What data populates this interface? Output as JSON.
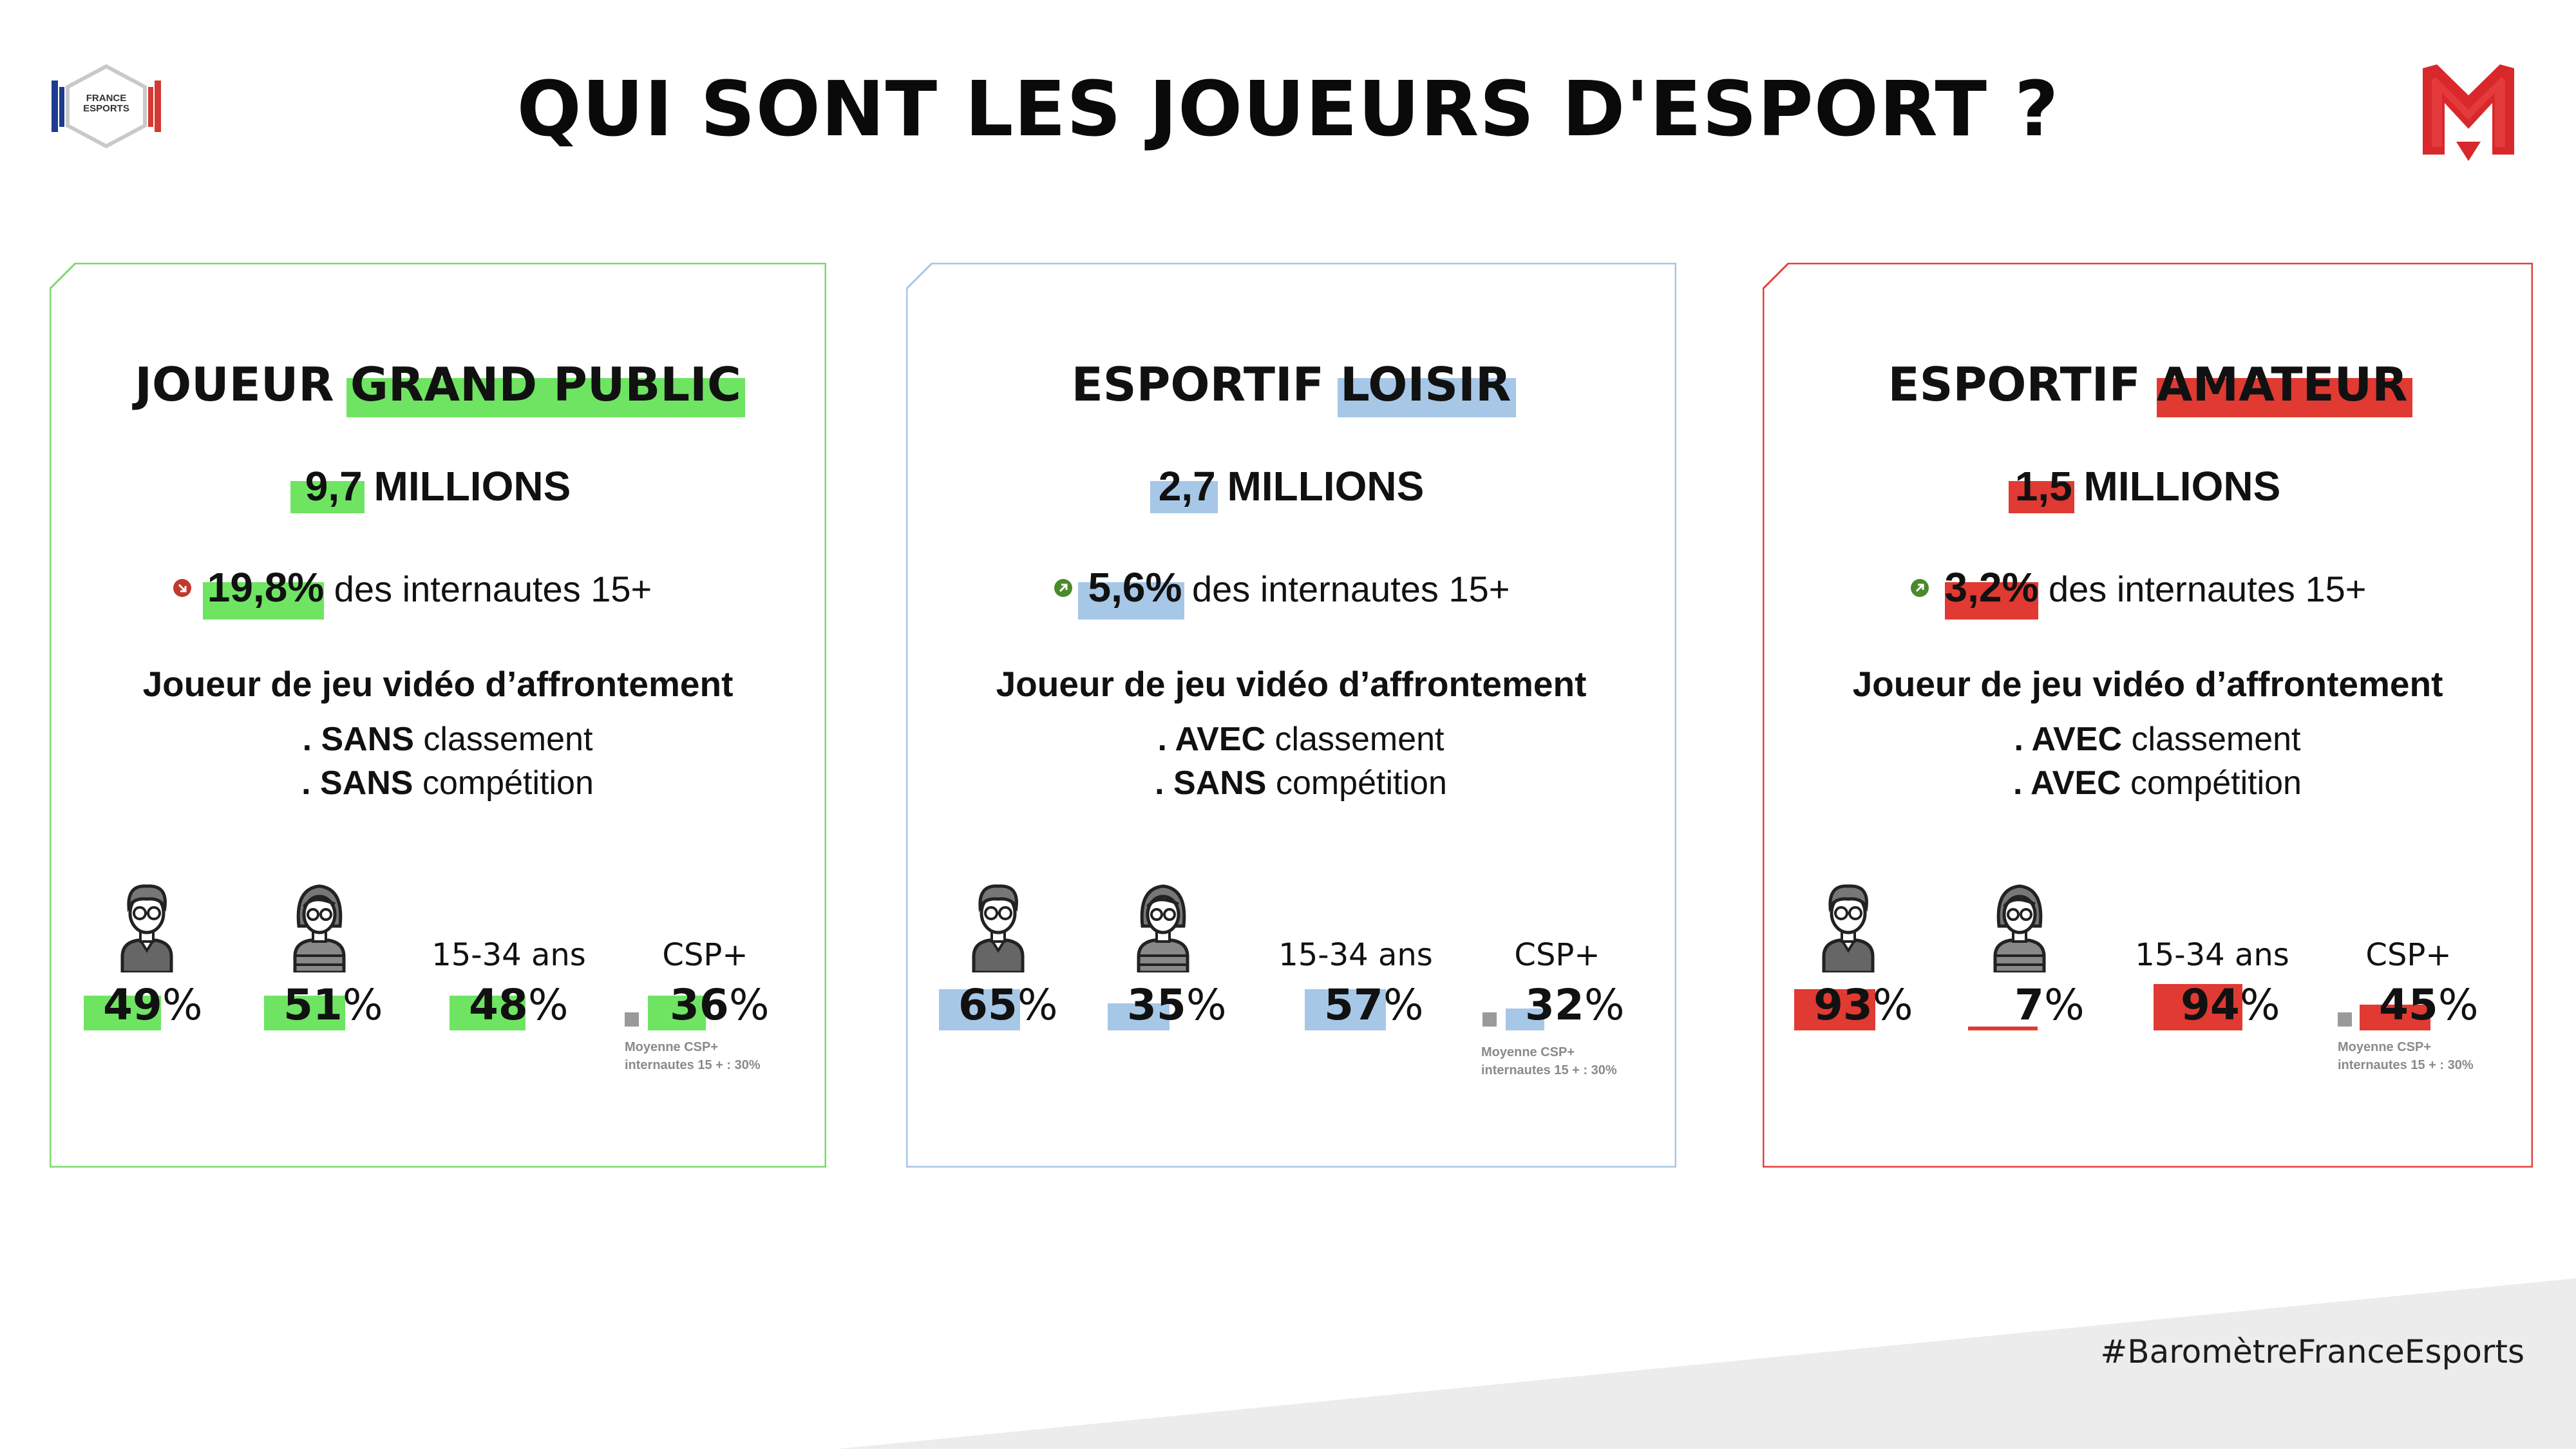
{
  "page": {
    "title": "QUI SONT LES JOUEURS D'ESPORT ?",
    "hashtag": "#BaromètreFranceEsports",
    "logo_left_text": "FRANCE ESPORTS"
  },
  "colors": {
    "green": "#6fe463",
    "blue": "#a7c7e7",
    "red": "#e03a33",
    "gray": "#9a9a9a",
    "trend_down": "#c0392b",
    "trend_up": "#4a8a2a"
  },
  "cards": [
    {
      "title_pre": "JOUEUR ",
      "title_hl": "GRAND PUBLIC",
      "millions_num": "9,7",
      "millions_label": " MILLIONS",
      "trend": "down",
      "pct": "19,8%",
      "pct_label": " des internautes 15+",
      "kind": "Joueur de jeu vidéo d’affrontement",
      "line1_bold": ". SANS",
      "line1_rest": " classement",
      "line2_bold": ". SANS",
      "line2_rest": " compétition",
      "men": {
        "num": "49",
        "unit": "%",
        "value": 49
      },
      "women": {
        "num": "51",
        "unit": "%",
        "value": 51
      },
      "age_label": "15-34 ans",
      "age": {
        "num": "48",
        "unit": "%",
        "value": 48
      },
      "csp_label": "CSP+",
      "csp": {
        "num": "36",
        "unit": "%",
        "value": 36
      },
      "avg_line1": "Moyenne CSP+",
      "avg_line2": "internautes 15 + : 30%"
    },
    {
      "title_pre": "ESPORTIF ",
      "title_hl": "LOISIR",
      "millions_num": "2,7",
      "millions_label": " MILLIONS",
      "trend": "up",
      "pct": "5,6%",
      "pct_label": " des internautes 15+",
      "kind": "Joueur de jeu vidéo d’affrontement",
      "line1_bold": ". AVEC",
      "line1_rest": " classement",
      "line2_bold": ". SANS",
      "line2_rest": " compétition",
      "men": {
        "num": "65",
        "unit": "%",
        "value": 65
      },
      "women": {
        "num": "35",
        "unit": "%",
        "value": 35
      },
      "age_label": "15-34 ans",
      "age": {
        "num": "57",
        "unit": "%",
        "value": 57
      },
      "csp_label": "CSP+",
      "csp": {
        "num": "32",
        "unit": "%",
        "value": 32
      },
      "avg_line1": "Moyenne CSP+",
      "avg_line2": "internautes 15 + : 30%"
    },
    {
      "title_pre": "ESPORTIF ",
      "title_hl": "AMATEUR",
      "millions_num": "1,5",
      "millions_label": " MILLIONS",
      "trend": "up",
      "pct": "3,2%",
      "pct_label": " des internautes 15+",
      "kind": "Joueur de jeu vidéo d’affrontement",
      "line1_bold": ". AVEC",
      "line1_rest": " classement",
      "line2_bold": ". AVEC",
      "line2_rest": " compétition",
      "men": {
        "num": "93",
        "unit": "%",
        "value": 93
      },
      "women": {
        "num": "7",
        "unit": "%",
        "value": 7
      },
      "age_label": "15-34 ans",
      "age": {
        "num": "94",
        "unit": "%",
        "value": 94
      },
      "csp_label": "CSP+",
      "csp": {
        "num": "45",
        "unit": "%",
        "value": 45
      },
      "avg_line1": "Moyenne CSP+",
      "avg_line2": "internautes 15 + : 30%"
    }
  ]
}
